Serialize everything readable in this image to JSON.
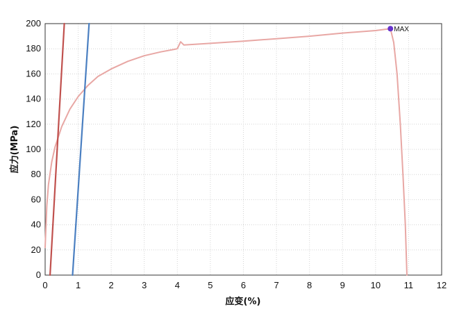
{
  "chart_data": {
    "type": "line",
    "title": "",
    "xlabel": "应变(%)",
    "ylabel": "应力(MPa)",
    "xlim": [
      0,
      12
    ],
    "ylim": [
      0,
      200
    ],
    "xticks": [
      "0",
      "1",
      "2",
      "3",
      "4",
      "5",
      "6",
      "7",
      "8",
      "9",
      "10",
      "11",
      "12"
    ],
    "yticks": [
      "0",
      "20",
      "40",
      "60",
      "80",
      "100",
      "120",
      "140",
      "160",
      "180",
      "200"
    ],
    "grid": true,
    "legend": "none",
    "series": [
      {
        "color": "#e8a7a4",
        "points": [
          [
            0,
            22
          ],
          [
            0.05,
            55
          ],
          [
            0.1,
            72
          ],
          [
            0.2,
            90
          ],
          [
            0.3,
            102
          ],
          [
            0.5,
            118
          ],
          [
            0.75,
            132
          ],
          [
            1.0,
            142
          ],
          [
            1.3,
            151
          ],
          [
            1.6,
            158
          ],
          [
            2.0,
            164
          ],
          [
            2.5,
            170
          ],
          [
            3.0,
            174.5
          ],
          [
            3.5,
            177.5
          ],
          [
            3.9,
            179.5
          ],
          [
            4.0,
            180
          ],
          [
            4.1,
            185.5
          ],
          [
            4.2,
            183
          ],
          [
            5.0,
            184.3
          ],
          [
            6.0,
            186
          ],
          [
            7.0,
            188
          ],
          [
            8.0,
            190
          ],
          [
            9.0,
            192.5
          ],
          [
            10.0,
            194.5
          ],
          [
            10.45,
            196
          ],
          [
            10.55,
            185
          ],
          [
            10.65,
            160
          ],
          [
            10.75,
            120
          ],
          [
            10.83,
            80
          ],
          [
            10.9,
            40
          ],
          [
            10.95,
            0
          ]
        ]
      },
      {
        "color": "#c0504d",
        "points": [
          [
            0.15,
            0
          ],
          [
            0.58,
            200
          ]
        ]
      },
      {
        "color": "#4a7fc1",
        "points": [
          [
            0.83,
            0
          ],
          [
            1.33,
            200
          ]
        ]
      }
    ],
    "annotations": [
      {
        "label": "MAX",
        "x": 10.45,
        "y": 196,
        "color": "#6633cc"
      }
    ]
  }
}
